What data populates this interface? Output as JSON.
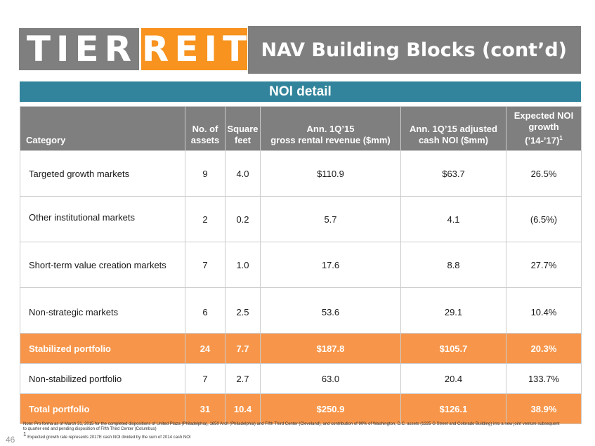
{
  "logo": {
    "part1": "TIER",
    "part2": "REIT"
  },
  "title": "NAV Building Blocks (cont’d)",
  "section_title": "NOI detail",
  "table": {
    "headers": {
      "category": "Category",
      "assets_line1": "No. of",
      "assets_line2": "assets",
      "sqft_line1": "Square",
      "sqft_line2": "feet",
      "revenue_line1": "Ann. 1Q’15",
      "revenue_line2": "gross rental revenue ($mm)",
      "noi_line1": "Ann. 1Q’15 adjusted",
      "noi_line2": "cash NOI ($mm)",
      "growth_line1": "Expected NOI",
      "growth_line2": "growth",
      "growth_line3": "(’14-’17)",
      "growth_sup": "1"
    },
    "rows": [
      {
        "category": "Targeted growth markets",
        "assets": "9",
        "sqft": "4.0",
        "revenue": "$110.9",
        "noi": "$63.7",
        "growth": "26.5%"
      },
      {
        "category": "Other institutional markets",
        "assets": "2",
        "sqft": "0.2",
        "revenue": "5.7",
        "noi": "4.1",
        "growth": "(6.5%)"
      },
      {
        "category": "Short-term value creation markets",
        "assets": "7",
        "sqft": "1.0",
        "revenue": "17.6",
        "noi": "8.8",
        "growth": "27.7%"
      },
      {
        "category": "Non-strategic markets",
        "assets": "6",
        "sqft": "2.5",
        "revenue": "53.6",
        "noi": "29.1",
        "growth": "10.4%"
      },
      {
        "category": "Stabilized portfolio",
        "assets": "24",
        "sqft": "7.7",
        "revenue": "$187.8",
        "noi": "$105.7",
        "growth": "20.3%"
      },
      {
        "category": "Non-stabilized portfolio",
        "assets": "7",
        "sqft": "2.7",
        "revenue": "63.0",
        "noi": "20.4",
        "growth": "133.7%"
      },
      {
        "category": "Total portfolio",
        "assets": "31",
        "sqft": "10.4",
        "revenue": "$250.9",
        "noi": "$126.1",
        "growth": "38.9%"
      }
    ]
  },
  "notes": {
    "line1": "Note: Pro forma as of March 31, 2015 for the completed dispositions of United Plaza (Philadelphia), 1650 Arch (Philadelphia) and Fifth Third Center (Cleveland), and contribution of 90% of Washington, D.C. assets (1325 G Street and Colorado Building) into a new joint venture subsequent to quarter end and pending disposition of Fifth Third Center (Columbus)",
    "line2_sup": "1",
    "line2": " Expected growth rate represents 2017E cash NOI divided by the sum of 2014 cash NOI"
  },
  "page_number": "46",
  "colors": {
    "brand_gray": "#7f7f7f",
    "brand_orange": "#f7931e",
    "section_teal": "#31849b",
    "total_orange": "#f7964a"
  }
}
